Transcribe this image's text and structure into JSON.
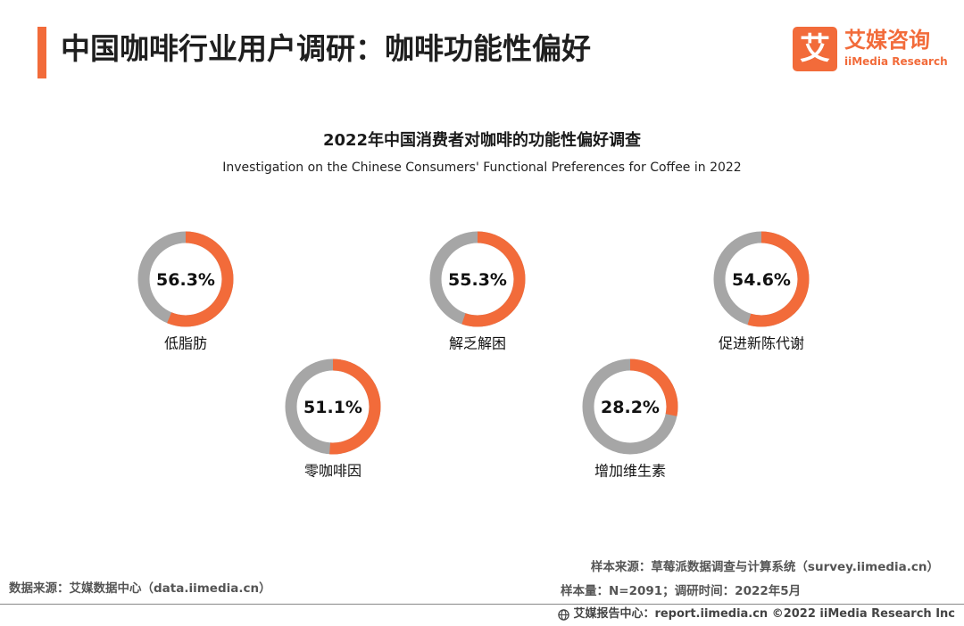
{
  "header": {
    "title": "中国咖啡行业用户调研：咖啡功能性偏好",
    "logo_mark": "艾",
    "logo_cn": "艾媒咨询",
    "logo_en": "iiMedia Research"
  },
  "colors": {
    "accent": "#f26b3a",
    "ring_remainder": "#a6a6a6"
  },
  "chart_data": {
    "type": "pie",
    "title": "2022年中国消费者对咖啡的功能性偏好调查",
    "subtitle": "Investigation on the Chinese Consumers' Functional Preferences for Coffee in 2022",
    "unit": "%",
    "items": [
      {
        "label": "低脂肪",
        "value": 56.3,
        "display": "56.3%"
      },
      {
        "label": "解乏解困",
        "value": 55.3,
        "display": "55.3%"
      },
      {
        "label": "促进新陈代谢",
        "value": 54.6,
        "display": "54.6%"
      },
      {
        "label": "零咖啡因",
        "value": 51.1,
        "display": "51.1%"
      },
      {
        "label": "增加维生素",
        "value": 28.2,
        "display": "28.2%"
      }
    ]
  },
  "footer": {
    "data_source": "数据来源：艾媒数据中心（data.iimedia.cn）",
    "sample_source": "样本来源：草莓派数据调查与计算系统（survey.iimedia.cn）",
    "sample_info": "样本量：N=2091；调研时间：2022年5月",
    "copyright": "艾媒报告中心：report.iimedia.cn   ©2022  iiMedia Research  Inc"
  }
}
